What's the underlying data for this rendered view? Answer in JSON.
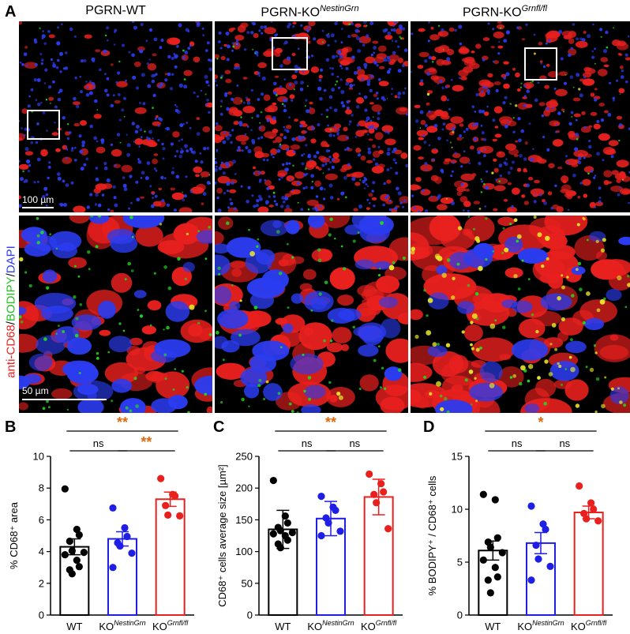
{
  "panel_letters": [
    "A",
    "B",
    "C",
    "D"
  ],
  "micrographs": {
    "columns": [
      {
        "title": "PGRN-WT",
        "sup": ""
      },
      {
        "title": "PGRN-KO",
        "sup": "NestinGrn"
      },
      {
        "title": "PGRN-KO",
        "sup": "Grnfl/fl"
      }
    ],
    "row_label": {
      "part1": "anti-CD68",
      "sep1": "/",
      "part2": "BODIPY",
      "sep2": "/",
      "part3": "DAPI"
    },
    "scale_top": "100 µm",
    "scale_bottom": "50 µm",
    "colors": {
      "cd68": "#e8201e",
      "bodipy": "#22d620",
      "dapi": "#2b3cf0",
      "lipid": "#e6e62a"
    }
  },
  "chart_data": [
    {
      "type": "bar",
      "panel": "B",
      "categories": [
        "WT",
        "KO",
        "KO"
      ],
      "category_sups": [
        "",
        "NestinGrn",
        "Grnfl/fl"
      ],
      "ylabel": "% CD68⁺ area",
      "ylim": [
        0,
        10
      ],
      "yticks": [
        0,
        2,
        4,
        6,
        8,
        10
      ],
      "values": [
        4.3,
        4.8,
        7.3
      ],
      "errors": [
        0.5,
        0.45,
        0.45
      ],
      "points": [
        [
          7.95,
          5.4,
          5.05,
          4.65,
          4.05,
          3.95,
          3.8,
          3.45,
          3.05,
          2.85,
          2.6
        ],
        [
          6.75,
          5.5,
          4.95,
          4.55,
          4.35,
          3.9,
          3.0
        ],
        [
          8.6,
          7.6,
          7.5,
          6.9,
          6.3,
          6.25
        ]
      ],
      "colors": [
        "#000000",
        "#1e1ee6",
        "#e8201e"
      ],
      "significance": [
        {
          "from": 0,
          "to": 1,
          "label": "ns",
          "level": 1
        },
        {
          "from": 1,
          "to": 2,
          "label": "**",
          "level": 1
        },
        {
          "from": 0,
          "to": 2,
          "label": "**",
          "level": 2
        }
      ]
    },
    {
      "type": "bar",
      "panel": "C",
      "categories": [
        "WT",
        "KO",
        "KO"
      ],
      "category_sups": [
        "",
        "NestinGrn",
        "Grnfl/fl"
      ],
      "ylabel": "CD68⁺ cells average size [µm²]",
      "ylim": [
        0,
        250
      ],
      "yticks": [
        0,
        50,
        100,
        150,
        200,
        250
      ],
      "values": [
        135,
        152,
        186
      ],
      "errors": [
        30,
        27,
        28
      ],
      "points": [
        [
          212,
          156,
          145,
          138,
          133,
          130,
          128,
          125,
          118,
          112,
          106
        ],
        [
          187,
          170,
          165,
          153,
          145,
          132,
          125
        ],
        [
          222,
          207,
          194,
          190,
          177,
          136
        ]
      ],
      "colors": [
        "#000000",
        "#1e1ee6",
        "#e8201e"
      ],
      "significance": [
        {
          "from": 0,
          "to": 1,
          "label": "ns",
          "level": 1
        },
        {
          "from": 1,
          "to": 2,
          "label": "ns",
          "level": 1
        },
        {
          "from": 0,
          "to": 2,
          "label": "**",
          "level": 2
        }
      ]
    },
    {
      "type": "bar",
      "panel": "D",
      "categories": [
        "WT",
        "KO",
        "KO"
      ],
      "category_sups": [
        "",
        "NestinGrn",
        "Grnfl/fl"
      ],
      "ylabel": "% BODIPY⁺ / CD68⁺ cells",
      "ylim": [
        0,
        15
      ],
      "yticks": [
        0,
        5,
        10,
        15
      ],
      "values": [
        6.1,
        6.8,
        9.7
      ],
      "errors": [
        0.9,
        1.0,
        0.6
      ],
      "points": [
        [
          11.4,
          10.9,
          7.3,
          6.9,
          6.4,
          5.9,
          5.2,
          4.5,
          3.6,
          3.3,
          2.1
        ],
        [
          10.3,
          8.6,
          8.1,
          6.6,
          5.3,
          4.6,
          3.3
        ],
        [
          12.2,
          10.6,
          10.0,
          9.6,
          9.1,
          8.9
        ]
      ],
      "colors": [
        "#000000",
        "#1e1ee6",
        "#e8201e"
      ],
      "significance": [
        {
          "from": 0,
          "to": 1,
          "label": "ns",
          "level": 1
        },
        {
          "from": 1,
          "to": 2,
          "label": "ns",
          "level": 1
        },
        {
          "from": 0,
          "to": 2,
          "label": "*",
          "level": 2
        }
      ]
    }
  ]
}
